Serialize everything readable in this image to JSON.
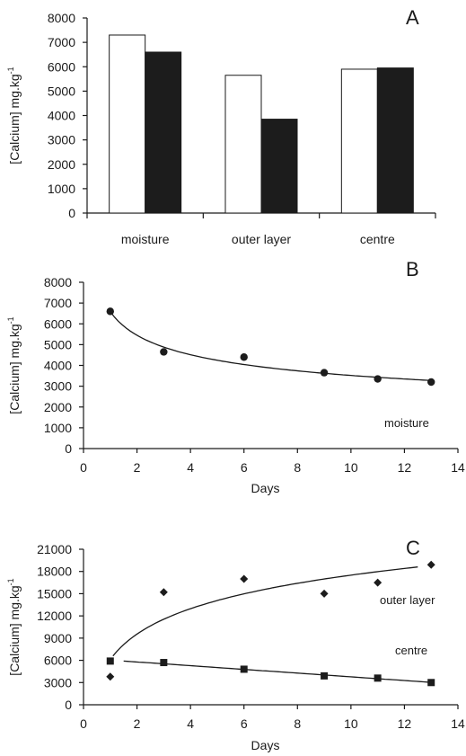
{
  "chart_data": [
    {
      "panel": "A",
      "type": "bar",
      "ylabel": "[Calcium] mg.kg",
      "ylabel_superscript": "-1",
      "ylim": [
        0,
        8000
      ],
      "yticks": [
        0,
        1000,
        2000,
        3000,
        4000,
        5000,
        6000,
        7000,
        8000
      ],
      "categories": [
        "moisture",
        "outer layer",
        "centre"
      ],
      "series": [
        {
          "values": [
            7300,
            5650,
            5900
          ],
          "fill": "#ffffff"
        },
        {
          "values": [
            6600,
            3850,
            5950
          ],
          "fill": "#1c1c1c"
        }
      ],
      "grid": false
    },
    {
      "panel": "B",
      "type": "scatter",
      "xlabel": "Days",
      "ylabel": "[Calcium] mg.kg",
      "ylabel_superscript": "-1",
      "xlim": [
        0,
        14
      ],
      "ylim": [
        0,
        8000
      ],
      "xticks": [
        0,
        2,
        4,
        6,
        8,
        10,
        12,
        14
      ],
      "yticks": [
        0,
        1000,
        2000,
        3000,
        4000,
        5000,
        6000,
        7000,
        8000
      ],
      "series": [
        {
          "label": "moisture",
          "marker": "circle",
          "x": [
            1,
            3,
            6,
            9,
            11,
            13
          ],
          "y": [
            6600,
            4650,
            4400,
            3650,
            3350,
            3200
          ],
          "trend": "power",
          "trend_x": [
            1,
            13
          ]
        }
      ],
      "grid": false
    },
    {
      "panel": "C",
      "type": "scatter",
      "xlabel": "Days",
      "ylabel": "[Calcium] mg.kg",
      "ylabel_superscript": "-1",
      "xlim": [
        0,
        14
      ],
      "ylim": [
        0,
        21000
      ],
      "xticks": [
        0,
        2,
        4,
        6,
        8,
        10,
        12,
        14
      ],
      "yticks": [
        0,
        3000,
        6000,
        9000,
        12000,
        15000,
        18000,
        21000
      ],
      "series": [
        {
          "label": "outer layer",
          "marker": "diamond",
          "x": [
            1,
            3,
            6,
            9,
            11,
            13
          ],
          "y": [
            3800,
            15200,
            17000,
            15000,
            16500,
            18900
          ],
          "trend": "log",
          "trend_x": [
            1.1,
            12.5
          ]
        },
        {
          "label": "centre",
          "marker": "square",
          "x": [
            1,
            3,
            6,
            9,
            11,
            13
          ],
          "y": [
            5900,
            5700,
            4800,
            3900,
            3600,
            3000
          ],
          "trend": "linear",
          "trend_x": [
            1.5,
            13
          ]
        }
      ],
      "grid": false
    }
  ]
}
